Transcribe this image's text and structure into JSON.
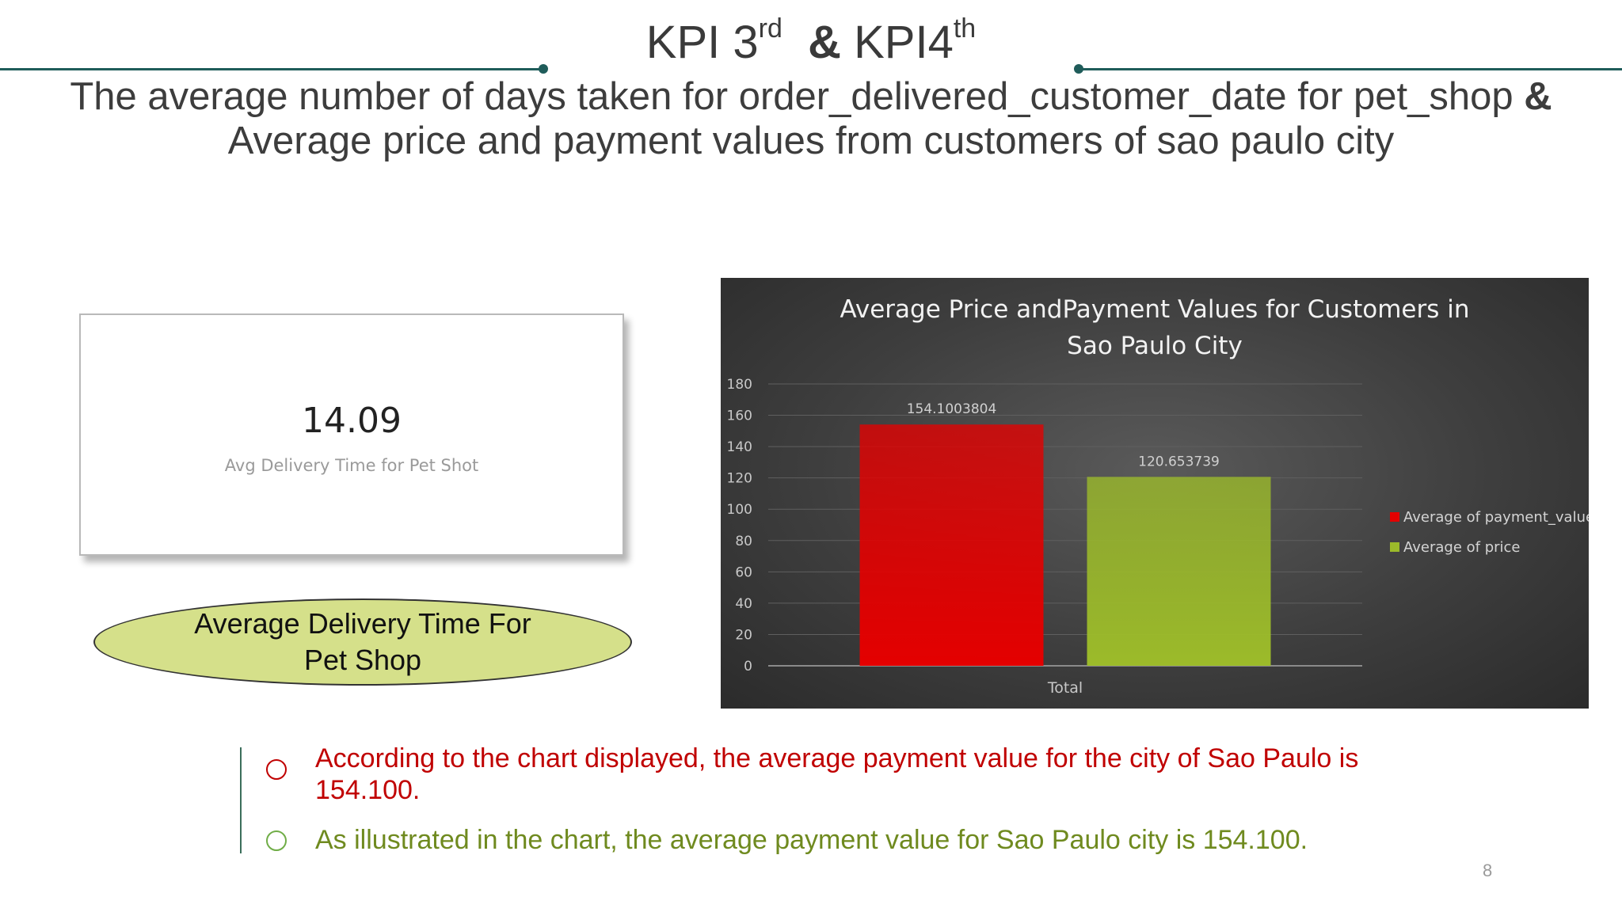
{
  "slide": {
    "kpi_left": "KPI 3",
    "kpi_left_sup": "rd",
    "kpi_amp": "&",
    "kpi_right": "KPI4",
    "kpi_right_sup": "th",
    "subtitle_line1": "The average number of days taken for order_delivered_customer_date for pet_shop",
    "subtitle_amp": "&",
    "subtitle_line2": "Average price and payment values from customers of sao paulo city",
    "page_number": "8"
  },
  "card": {
    "value": "14.09",
    "label": "Avg Delivery Time for Pet Shot"
  },
  "ellipse_label": "Average Delivery Time For Pet Shop",
  "callouts": [
    {
      "text": "According to the chart displayed, the average payment value for the city of Sao Paulo is 154.100.",
      "color": "#c00000"
    },
    {
      "text": "As illustrated in the chart, the average payment value for Sao Paulo city is 154.100.",
      "color": "#70ad47"
    }
  ],
  "chart_data": {
    "type": "bar",
    "title_line1": "Average Price andPayment Values for Customers in",
    "title_line2": "Sao Paulo City",
    "categories": [
      "Total"
    ],
    "series": [
      {
        "name": "Average of payment_value",
        "values": [
          154.1003804
        ],
        "label": "154.1003804",
        "color": "#e40000"
      },
      {
        "name": "Average of price",
        "values": [
          120.653739
        ],
        "label": "120.653739",
        "color": "#9cbb2a"
      }
    ],
    "ylim": [
      0,
      180
    ],
    "yticks": [
      0,
      20,
      40,
      60,
      80,
      100,
      120,
      140,
      160,
      180
    ],
    "grid": true,
    "legend": "right"
  }
}
